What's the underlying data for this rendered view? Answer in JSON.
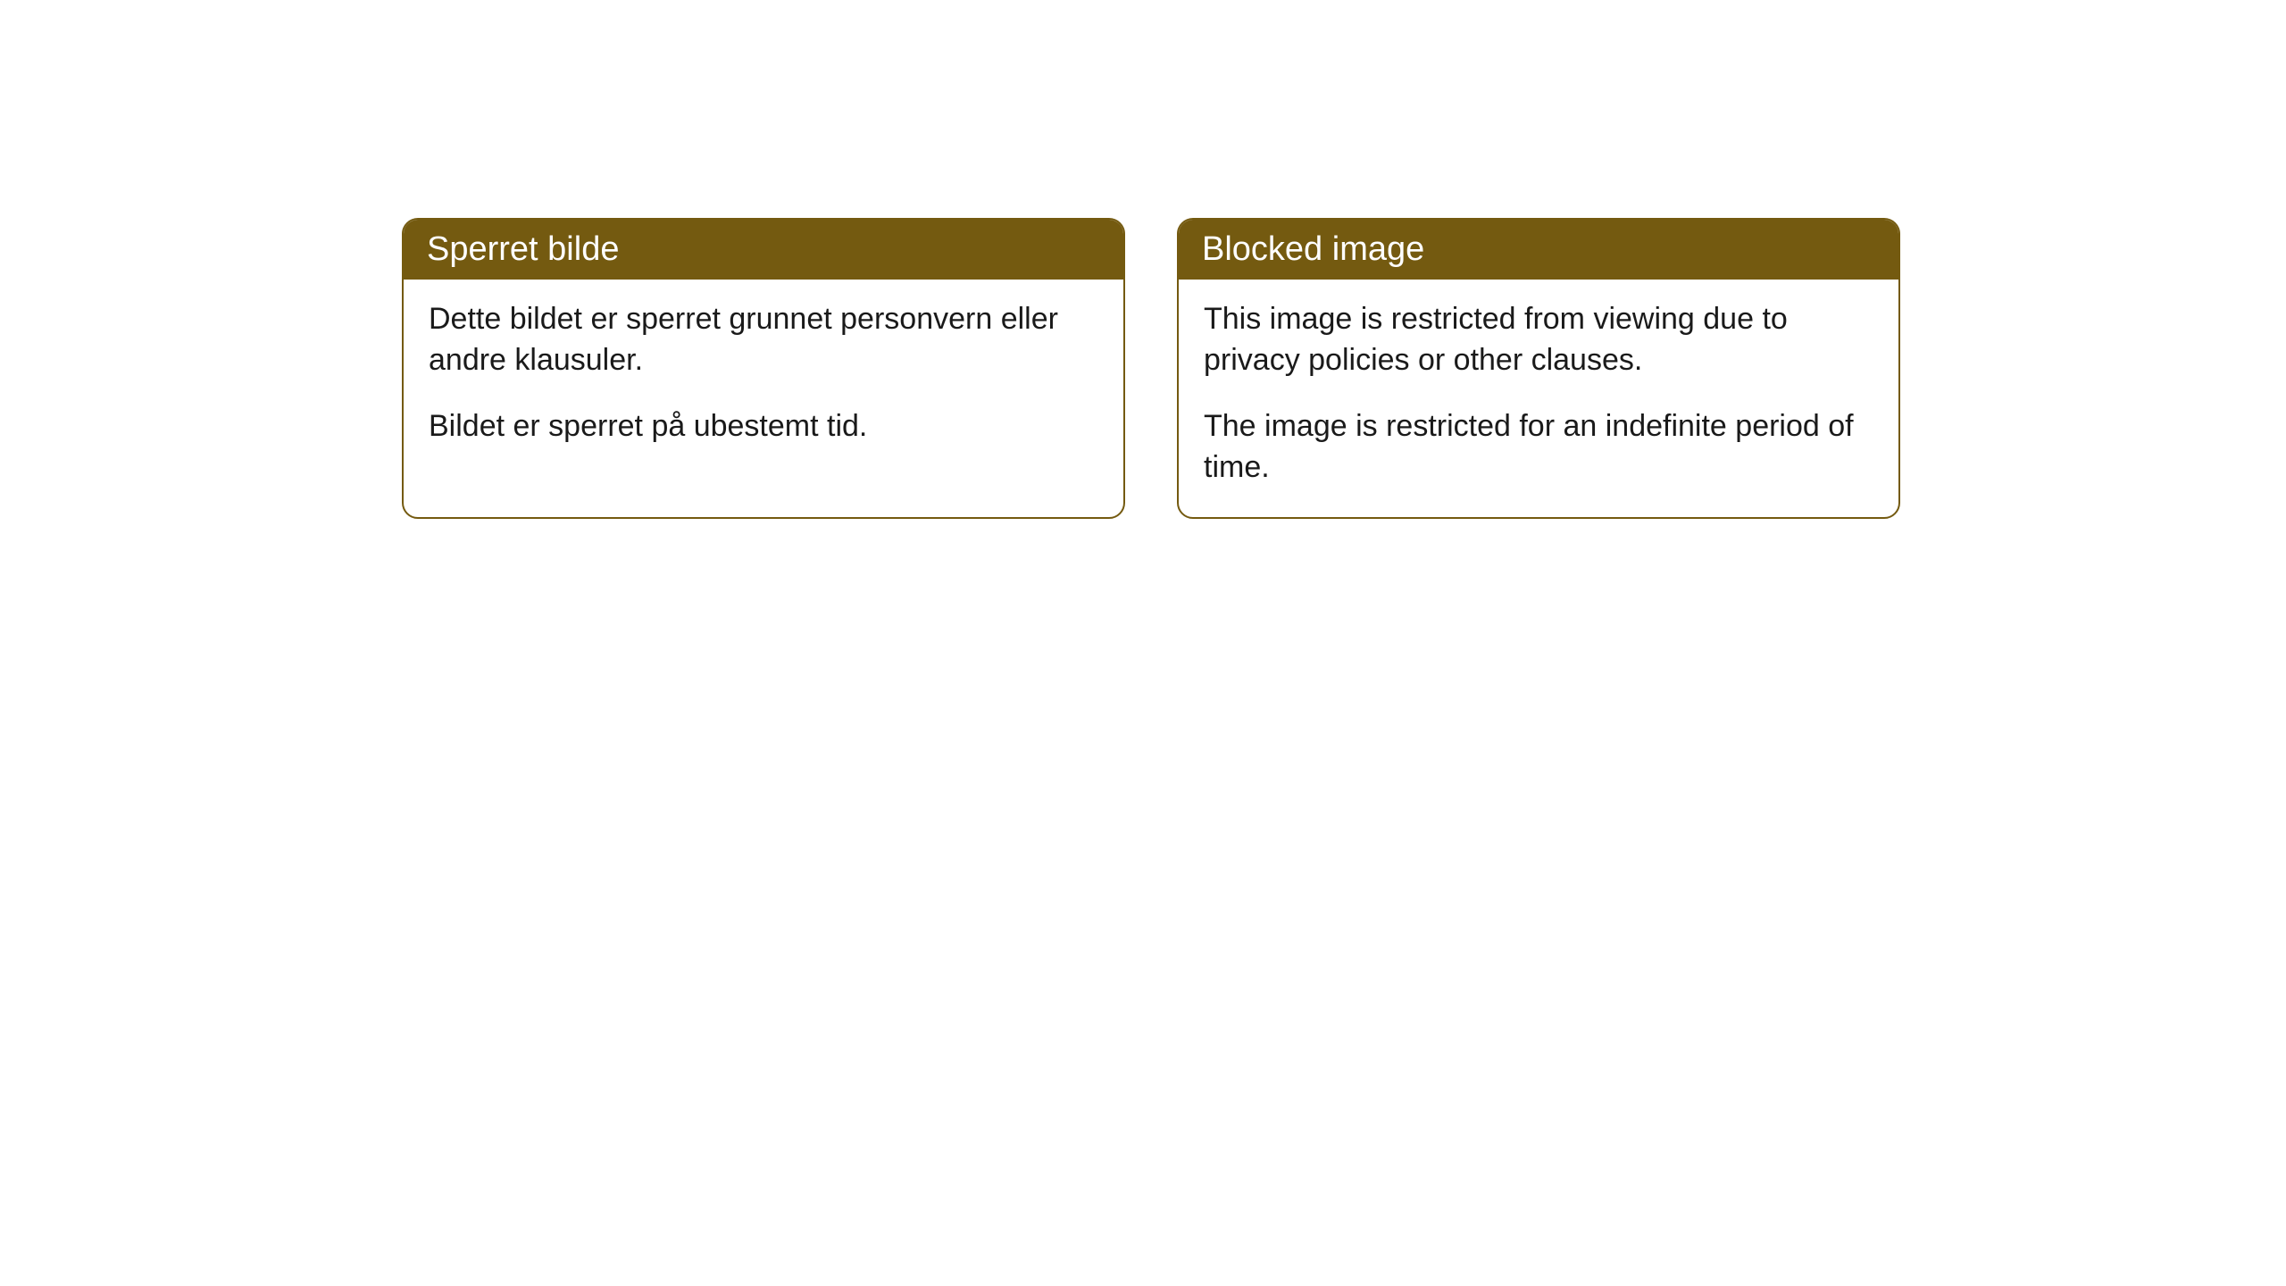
{
  "cards": [
    {
      "header": "Sperret bilde",
      "paragraph1": "Dette bildet er sperret grunnet personvern eller andre klausuler.",
      "paragraph2": "Bildet er sperret på ubestemt tid."
    },
    {
      "header": "Blocked image",
      "paragraph1": "This image is restricted from viewing due to privacy policies or other clauses.",
      "paragraph2": "The image is restricted for an indefinite period of time."
    }
  ],
  "styling": {
    "header_bg_color": "#745a10",
    "header_text_color": "#ffffff",
    "border_color": "#745a10",
    "body_bg_color": "#ffffff",
    "body_text_color": "#1a1a1a",
    "border_radius": "18px",
    "header_fontsize": "38px",
    "body_fontsize": "34px"
  }
}
